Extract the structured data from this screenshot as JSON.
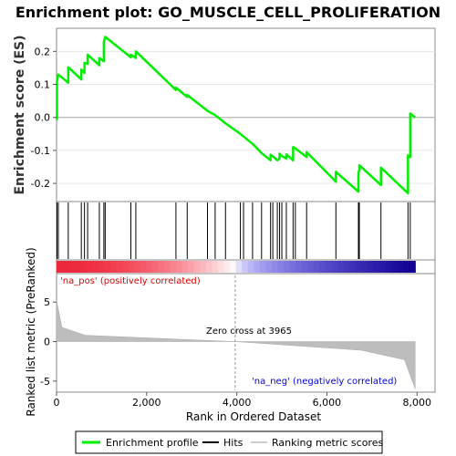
{
  "chart_data": {
    "type": "line",
    "title": "Enrichment plot: GO_MUSCLE_CELL_PROLIFERATION",
    "xlabel": "Rank in Ordered Dataset",
    "ylabel_top": "Enrichment score (ES)",
    "ylabel_bottom": "Ranked list metric (PreRanked)",
    "x_range": [
      0,
      8400
    ],
    "es_range": [
      -0.255,
      0.27
    ],
    "metric_range": [
      -6.4,
      8.6
    ],
    "x_ticks": [
      0,
      2000,
      4000,
      6000,
      8000
    ],
    "x_tick_labels": [
      "0",
      "2,000",
      "4,000",
      "6,000",
      "8,000"
    ],
    "es_ticks": [
      0.2,
      0.1,
      0.0,
      -0.1,
      -0.2
    ],
    "es_tick_labels": [
      "0.2",
      "0.1",
      "0.0",
      "-0.1",
      "-0.2"
    ],
    "metric_ticks": [
      5,
      0,
      -5
    ],
    "metric_tick_labels": [
      "5",
      "0",
      "-5"
    ],
    "zero_cross_rank": 3965,
    "zero_cross_label": "Zero cross at 3965",
    "pos_label": "'na_pos' (positively correlated)",
    "neg_label": "'na_neg' (negatively correlated)",
    "total_genes": 7960,
    "hits": [
      10,
      40,
      260,
      550,
      620,
      690,
      950,
      1050,
      1080,
      1650,
      1760,
      2650,
      2900,
      3350,
      3520,
      3750,
      4080,
      4150,
      4350,
      4550,
      4750,
      4800,
      4900,
      4950,
      5000,
      5100,
      5250,
      5300,
      5550,
      6200,
      6700,
      6720,
      7200,
      7800,
      7850
    ],
    "es_points": [
      [
        0,
        0.0
      ],
      [
        10,
        -0.005
      ],
      [
        10,
        0.11
      ],
      [
        40,
        0.13
      ],
      [
        260,
        0.105
      ],
      [
        260,
        0.152
      ],
      [
        550,
        0.115
      ],
      [
        550,
        0.145
      ],
      [
        620,
        0.135
      ],
      [
        620,
        0.165
      ],
      [
        690,
        0.162
      ],
      [
        690,
        0.19
      ],
      [
        950,
        0.158
      ],
      [
        950,
        0.18
      ],
      [
        1050,
        0.17
      ],
      [
        1050,
        0.228
      ],
      [
        1080,
        0.244
      ],
      [
        1650,
        0.182
      ],
      [
        1650,
        0.19
      ],
      [
        1760,
        0.18
      ],
      [
        1760,
        0.2
      ],
      [
        2650,
        0.083
      ],
      [
        2650,
        0.09
      ],
      [
        2900,
        0.062
      ],
      [
        2900,
        0.068
      ],
      [
        3350,
        0.02
      ],
      [
        3520,
        0.007
      ],
      [
        3750,
        -0.018
      ],
      [
        4080,
        -0.05
      ],
      [
        4150,
        -0.058
      ],
      [
        4350,
        -0.08
      ],
      [
        4550,
        -0.108
      ],
      [
        4750,
        -0.13
      ],
      [
        4750,
        -0.113
      ],
      [
        4800,
        -0.118
      ],
      [
        4900,
        -0.13
      ],
      [
        4950,
        -0.125
      ],
      [
        4950,
        -0.11
      ],
      [
        5000,
        -0.117
      ],
      [
        5100,
        -0.125
      ],
      [
        5100,
        -0.112
      ],
      [
        5250,
        -0.13
      ],
      [
        5250,
        -0.09
      ],
      [
        5300,
        -0.094
      ],
      [
        5550,
        -0.12
      ],
      [
        5550,
        -0.105
      ],
      [
        6200,
        -0.195
      ],
      [
        6200,
        -0.165
      ],
      [
        6700,
        -0.225
      ],
      [
        6700,
        -0.17
      ],
      [
        6720,
        -0.158
      ],
      [
        6720,
        -0.145
      ],
      [
        7200,
        -0.205
      ],
      [
        7200,
        -0.152
      ],
      [
        7800,
        -0.23
      ],
      [
        7800,
        -0.115
      ],
      [
        7850,
        -0.12
      ],
      [
        7850,
        0.012
      ],
      [
        7960,
        0.0
      ]
    ],
    "series": [
      {
        "name": "Enrichment profile",
        "color": "#00ee00"
      },
      {
        "name": "Hits",
        "color": "#000000"
      },
      {
        "name": "Ranking metric scores",
        "color": "#bbbbbb"
      }
    ]
  }
}
